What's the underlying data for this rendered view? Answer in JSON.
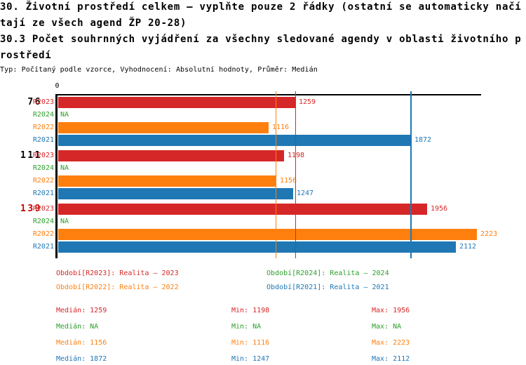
{
  "title": {
    "line1": "30. Životní prostředí celkem – vyplňte pouze 2 řádky (ostatní se automaticky načí",
    "line2": "tají ze všech agend ŽP 20-28)",
    "line3": "30.3 Počet souhrnných vyjádření za všechny sledované agendy v oblasti životního p",
    "line4": "rostředí",
    "meta": "Typ: Počítaný podle vzorce, Vyhodnocení: Absolutní hodnoty, Průměr: Medián"
  },
  "colors": {
    "red": "#d62728",
    "green": "#2ca02c",
    "orange": "#ff7f0e",
    "blue": "#1f77b4",
    "group_label_red": "#cc0000",
    "axis": "#000000"
  },
  "chart_data": {
    "type": "bar",
    "orientation": "horizontal",
    "axis_origin_label": "0",
    "axis_range": [
      0,
      2250
    ],
    "grid": false,
    "series_order": [
      "R2023",
      "R2024",
      "R2022",
      "R2021"
    ],
    "na_text": "NA",
    "groups": [
      {
        "label": "76",
        "label_color": "#000000",
        "bars": [
          {
            "series": "R2023",
            "value": 1259,
            "display": "1259",
            "color": "#d62728"
          },
          {
            "series": "R2024",
            "value": null,
            "display": "NA",
            "color": "#2ca02c"
          },
          {
            "series": "R2022",
            "value": 1116,
            "display": "1116",
            "color": "#ff7f0e"
          },
          {
            "series": "R2021",
            "value": 1872,
            "display": "1872",
            "color": "#1f77b4"
          }
        ]
      },
      {
        "label": "111",
        "label_color": "#000000",
        "bars": [
          {
            "series": "R2023",
            "value": 1198,
            "display": "1198",
            "color": "#d62728"
          },
          {
            "series": "R2024",
            "value": null,
            "display": "NA",
            "color": "#2ca02c"
          },
          {
            "series": "R2022",
            "value": 1156,
            "display": "1156",
            "color": "#ff7f0e"
          },
          {
            "series": "R2021",
            "value": 1247,
            "display": "1247",
            "color": "#1f77b4"
          }
        ]
      },
      {
        "label": "139",
        "label_color": "#cc0000",
        "bars": [
          {
            "series": "R2023",
            "value": 1956,
            "display": "1956",
            "color": "#d62728"
          },
          {
            "series": "R2024",
            "value": null,
            "display": "NA",
            "color": "#2ca02c"
          },
          {
            "series": "R2022",
            "value": 2223,
            "display": "2223",
            "color": "#ff7f0e"
          },
          {
            "series": "R2021",
            "value": 2112,
            "display": "2112",
            "color": "#1f77b4"
          }
        ]
      }
    ],
    "median_lines": [
      {
        "series": "R2023",
        "value": 1259,
        "color": "#d62728"
      },
      {
        "series": "R2022",
        "value": 1156,
        "color": "#ff7f0e"
      },
      {
        "series": "R2021",
        "value": 1872,
        "color": "#1f77b4"
      }
    ]
  },
  "legend": [
    {
      "label": "Období[R2023]: Realita – 2023",
      "color": "#d62728",
      "col": 0,
      "row": 0
    },
    {
      "label": "Období[R2024]: Realita – 2024",
      "color": "#2ca02c",
      "col": 1,
      "row": 0
    },
    {
      "label": "Období[R2022]: Realita – 2022",
      "color": "#ff7f0e",
      "col": 0,
      "row": 1
    },
    {
      "label": "Období[R2021]: Realita – 2021",
      "color": "#1f77b4",
      "col": 1,
      "row": 1
    }
  ],
  "stats": [
    {
      "median": "Medián: 1259",
      "min": "Min: 1198",
      "max": "Max: 1956",
      "color": "#d62728"
    },
    {
      "median": "Medián: NA",
      "min": "Min: NA",
      "max": "Max: NA",
      "color": "#2ca02c"
    },
    {
      "median": "Medián: 1156",
      "min": "Min: 1116",
      "max": "Max: 2223",
      "color": "#ff7f0e"
    },
    {
      "median": "Medián: 1872",
      "min": "Min: 1247",
      "max": "Max: 2112",
      "color": "#1f77b4"
    }
  ]
}
